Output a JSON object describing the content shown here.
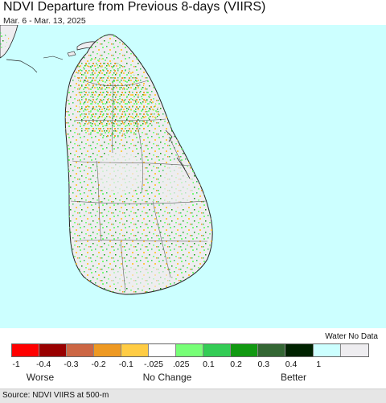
{
  "header": {
    "title": "NDVI Departure from Previous 8-days (VIIRS)",
    "date_range": "Mar. 6 - Mar. 13, 2025"
  },
  "map": {
    "ocean_color": "#ccffff",
    "land_base_color": "#eeedf0",
    "boundary_color": "#222222"
  },
  "legend": {
    "water_no_data_label": "Water No Data",
    "swatches": [
      {
        "color": "#ff0000",
        "label": "-1"
      },
      {
        "color": "#990000",
        "label": "-0.4"
      },
      {
        "color": "#cc6644",
        "label": "-0.3"
      },
      {
        "color": "#ee9922",
        "label": "-0.2"
      },
      {
        "color": "#ffcc44",
        "label": "-0.1"
      },
      {
        "color": "#ffffff",
        "label": "-.025"
      },
      {
        "color": "#77ff77",
        "label": ".025"
      },
      {
        "color": "#33cc55",
        "label": "0.1"
      },
      {
        "color": "#119911",
        "label": "0.2"
      },
      {
        "color": "#336633",
        "label": "0.3"
      },
      {
        "color": "#002200",
        "label": "0.4"
      },
      {
        "color": "#ccffff",
        "label": "1"
      },
      {
        "color": "#eeedf0",
        "label": ""
      }
    ],
    "tick_labels": [
      "-1",
      "-0.4",
      "-0.3",
      "-0.2",
      "-0.1",
      "-.025",
      ".025",
      "0.1",
      "0.2",
      "0.3",
      "0.4",
      "1"
    ],
    "categories": {
      "worse": "Worse",
      "no_change": "No Change",
      "better": "Better"
    }
  },
  "footer": {
    "source": "Source: NDVI VIIRS at 500-m"
  }
}
